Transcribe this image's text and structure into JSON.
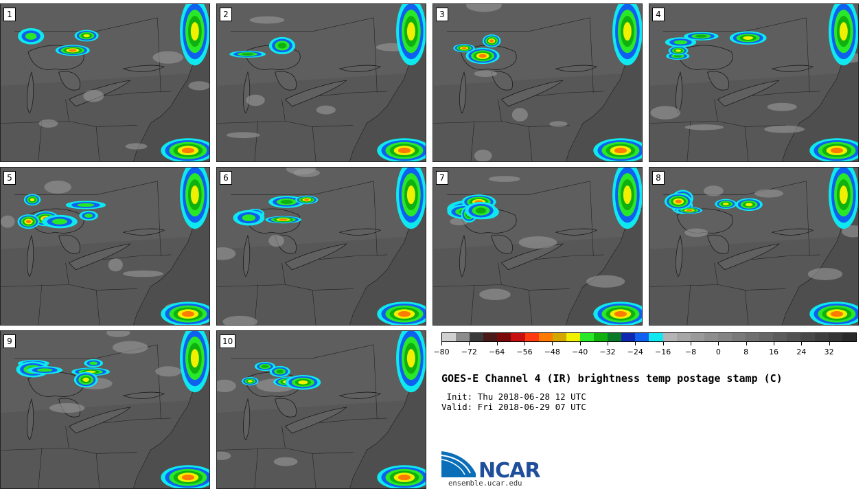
{
  "panels": [
    {
      "label": "1"
    },
    {
      "label": "2"
    },
    {
      "label": "3"
    },
    {
      "label": "4"
    },
    {
      "label": "5"
    },
    {
      "label": "6"
    },
    {
      "label": "7"
    },
    {
      "label": "8"
    },
    {
      "label": "9"
    },
    {
      "label": "10"
    }
  ],
  "colorbar": {
    "colors": [
      "#d0d0d0",
      "#8c8c8c",
      "#3a3a3a",
      "#4a1a1a",
      "#7a0a0a",
      "#c81010",
      "#ff3a10",
      "#ff7a00",
      "#d4a800",
      "#f0f000",
      "#28e828",
      "#10b010",
      "#0a7a28",
      "#1028b0",
      "#1060f0",
      "#10e8f0",
      "#b4b4b4",
      "#a6a6a6",
      "#9a9a9a",
      "#8e8e8e",
      "#848484",
      "#7a7a7a",
      "#707070",
      "#666666",
      "#5c5c5c",
      "#525252",
      "#484848",
      "#3e3e3e",
      "#343434",
      "#2a2a2a"
    ],
    "ticks": [
      "−80",
      "−72",
      "−64",
      "−56",
      "−48",
      "−40",
      "−32",
      "−24",
      "−16",
      "−8",
      "0",
      "8",
      "16",
      "24",
      "32"
    ]
  },
  "title": "GOES-E Channel 4 (IR) brightness temp postage stamp (C)",
  "init": " Init: Thu 2018-06-28 12 UTC",
  "valid": "Valid: Fri 2018-06-29 07 UTC",
  "logo": {
    "name": "NCAR",
    "url": "ensemble.ucar.edu"
  }
}
